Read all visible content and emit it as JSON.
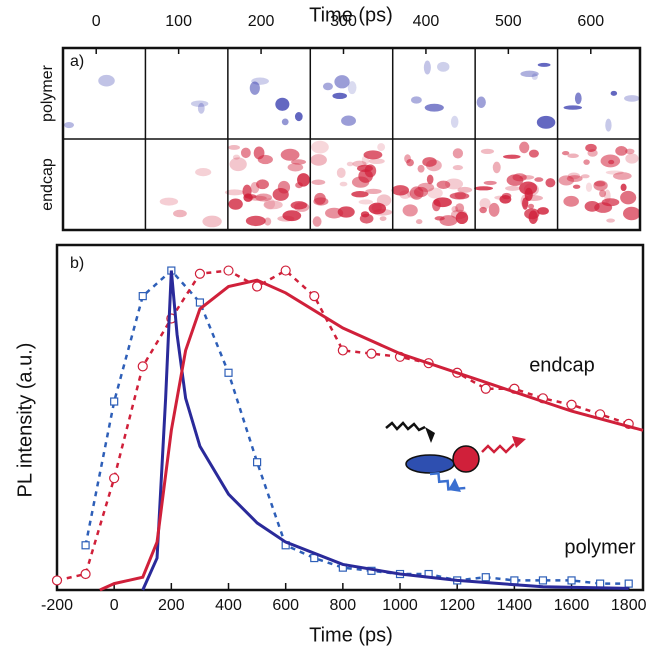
{
  "chart_data": [
    {
      "type": "image-grid",
      "title": "Time (ps)",
      "label": "a)",
      "categories": [
        "0",
        "100",
        "200",
        "300",
        "400",
        "500",
        "600"
      ],
      "rows": [
        {
          "name": "polymer",
          "color": "#3a3fb0"
        },
        {
          "name": "endcap",
          "color": "#d0203a"
        }
      ]
    },
    {
      "type": "line",
      "label": "b)",
      "xlabel": "Time (ps)",
      "ylabel": "PL intensity (a.u.)",
      "xlim": [
        -200,
        1850
      ],
      "ylim": [
        0,
        1.08
      ],
      "xticks": [
        -200,
        0,
        200,
        400,
        600,
        800,
        1000,
        1200,
        1400,
        1600,
        1800
      ],
      "series": [
        {
          "name": "polymer",
          "color": "#2e5fb8",
          "marker": "square",
          "line": "dashed",
          "x": [
            -100,
            0,
            100,
            200,
            300,
            400,
            500,
            600,
            700,
            800,
            900,
            1000,
            1100,
            1200,
            1300,
            1400,
            1500,
            1600,
            1700,
            1800
          ],
          "values": [
            0.14,
            0.59,
            0.92,
            1.0,
            0.9,
            0.68,
            0.4,
            0.14,
            0.1,
            0.07,
            0.06,
            0.05,
            0.05,
            0.03,
            0.04,
            0.03,
            0.03,
            0.03,
            0.02,
            0.02
          ]
        },
        {
          "name": "endcap",
          "color": "#d0203a",
          "marker": "circle",
          "line": "dashed",
          "x": [
            -200,
            -100,
            0,
            100,
            200,
            300,
            400,
            500,
            600,
            700,
            800,
            900,
            1000,
            1100,
            1200,
            1300,
            1400,
            1500,
            1600,
            1700,
            1800
          ],
          "values": [
            0.03,
            0.05,
            0.35,
            0.7,
            0.85,
            0.99,
            1.0,
            0.95,
            1.0,
            0.92,
            0.75,
            0.74,
            0.73,
            0.71,
            0.68,
            0.63,
            0.63,
            0.6,
            0.58,
            0.55,
            0.52
          ]
        },
        {
          "color": "#2a2a9a",
          "line": "solid",
          "x": [
            100,
            150,
            180,
            200,
            220,
            250,
            300,
            400,
            500,
            600,
            800,
            1000,
            1200,
            1500,
            1800
          ],
          "values": [
            0,
            0.1,
            0.6,
            1.0,
            0.8,
            0.6,
            0.45,
            0.3,
            0.21,
            0.15,
            0.08,
            0.05,
            0.03,
            0.01,
            0.005
          ]
        },
        {
          "color": "#d0203a",
          "line": "solid",
          "x": [
            -50,
            0,
            100,
            150,
            200,
            250,
            300,
            400,
            500,
            600,
            800,
            1000,
            1200,
            1400,
            1600,
            1850
          ],
          "values": [
            0,
            0.02,
            0.04,
            0.15,
            0.5,
            0.75,
            0.88,
            0.95,
            0.97,
            0.93,
            0.82,
            0.74,
            0.68,
            0.62,
            0.56,
            0.5
          ]
        }
      ]
    }
  ]
}
